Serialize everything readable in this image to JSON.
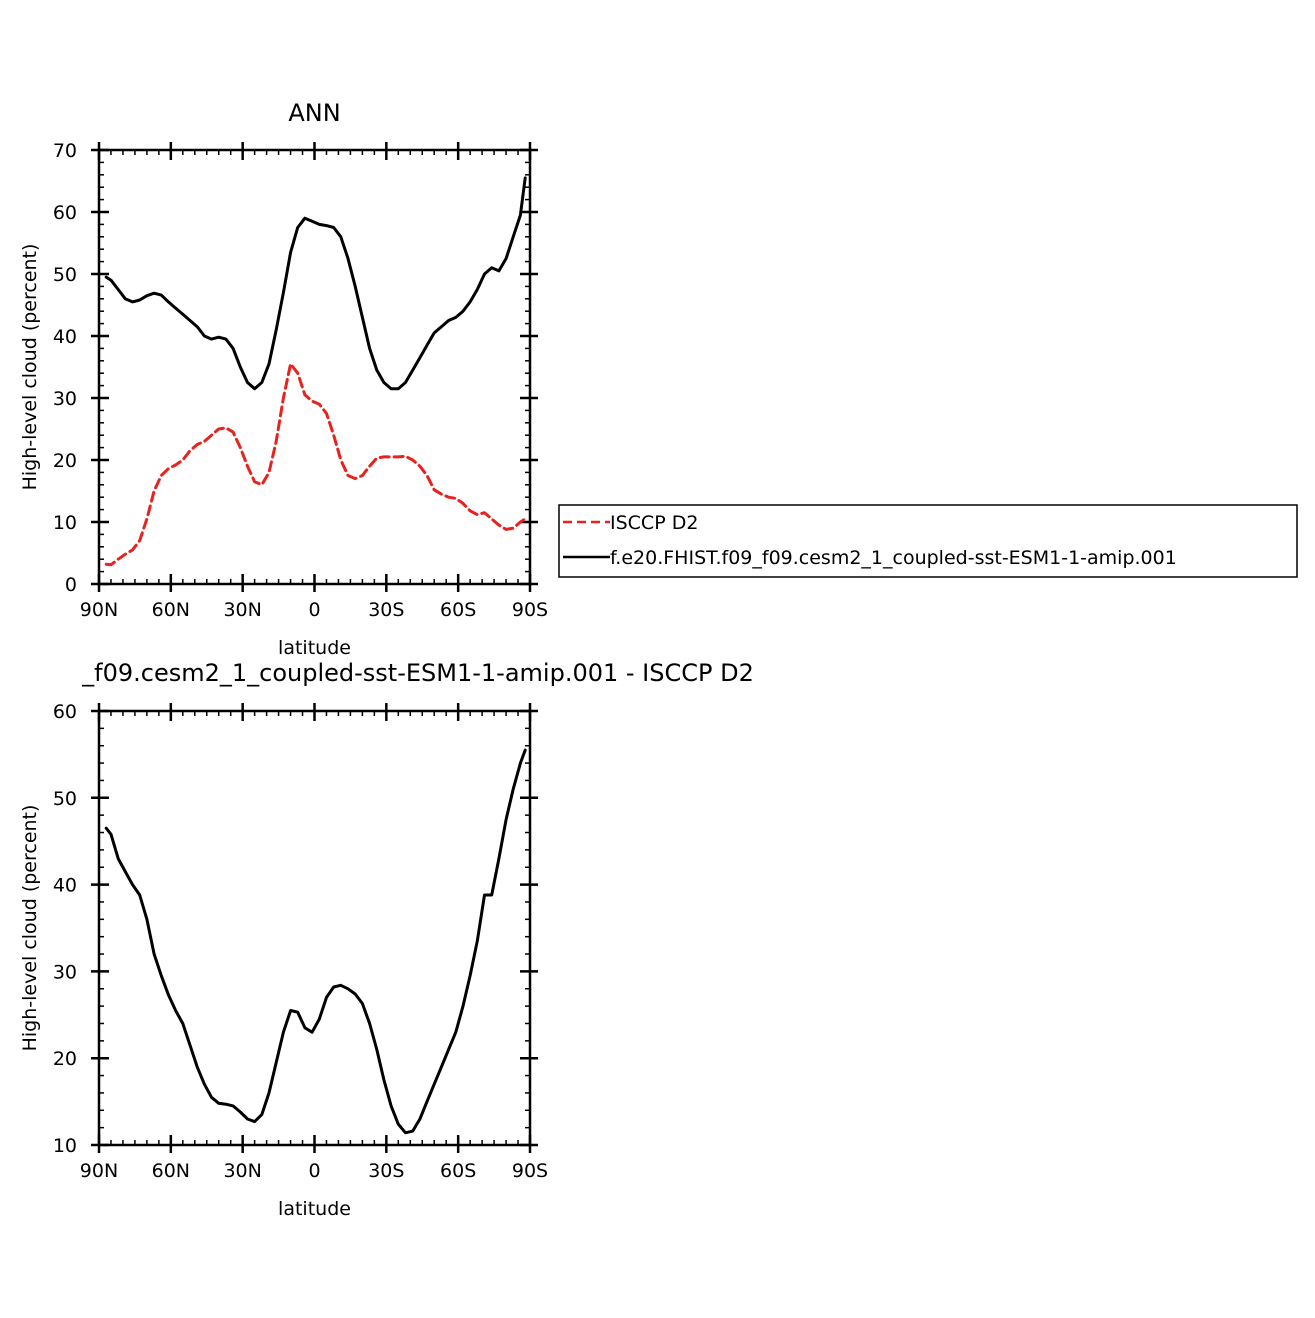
{
  "chart_data": [
    {
      "type": "line",
      "title": "ANN",
      "xlabel": "latitude",
      "ylabel": "High-level cloud (percent)",
      "xlim": [
        -90,
        90
      ],
      "ylim": [
        0,
        70
      ],
      "x_ticks": [
        -90,
        -60,
        -30,
        0,
        30,
        60,
        90
      ],
      "x_tick_labels": [
        "90N",
        "60N",
        "30N",
        "0",
        "30S",
        "60S",
        "90S"
      ],
      "y_ticks": [
        0,
        10,
        20,
        30,
        40,
        50,
        60,
        70
      ],
      "y_tick_labels": [
        "0",
        "10",
        "20",
        "30",
        "40",
        "50",
        "60",
        "70"
      ],
      "legend_position": "right",
      "x": [
        -87,
        -85,
        -82,
        -79,
        -76,
        -73,
        -70,
        -67,
        -64,
        -61,
        -58,
        -55,
        -52,
        -49,
        -46,
        -43,
        -40,
        -37,
        -34,
        -31,
        -28,
        -25,
        -22,
        -19,
        -16,
        -13,
        -10,
        -7,
        -4,
        -1,
        2,
        5,
        8,
        11,
        14,
        17,
        20,
        23,
        26,
        29,
        32,
        35,
        38,
        41,
        44,
        47,
        50,
        53,
        56,
        59,
        62,
        65,
        68,
        71,
        74,
        77,
        80,
        83,
        86,
        88
      ],
      "series": [
        {
          "name": "ISCCP D2",
          "color": "#e8221e",
          "dash": "dashed",
          "values": [
            3.2,
            3.1,
            4.0,
            4.8,
            5.5,
            7.0,
            10.5,
            15.0,
            17.5,
            18.6,
            19.2,
            20.0,
            21.5,
            22.5,
            23.0,
            24.0,
            25.0,
            25.2,
            24.5,
            22.0,
            19.0,
            16.5,
            16.0,
            18.0,
            23.0,
            30.0,
            35.5,
            34.0,
            30.5,
            29.5,
            29.0,
            27.5,
            24.0,
            20.0,
            17.5,
            17.0,
            17.5,
            19.0,
            20.3,
            20.5,
            20.5,
            20.5,
            20.6,
            20.0,
            19.0,
            17.5,
            15.2,
            14.5,
            14.0,
            13.8,
            13.0,
            11.8,
            11.2,
            11.5,
            10.5,
            9.5,
            8.8,
            9.0,
            10.0,
            10.5
          ],
          "label": "ISCCP D2"
        },
        {
          "name": "f.e20.FHIST.f09_f09.cesm2_1_coupled-sst-ESM1-1-amip.001",
          "color": "#000000",
          "dash": "solid",
          "values": [
            49.5,
            49.0,
            47.5,
            46.0,
            45.5,
            45.8,
            46.5,
            46.9,
            46.6,
            45.5,
            44.5,
            43.5,
            42.5,
            41.5,
            40.0,
            39.5,
            39.8,
            39.5,
            38.0,
            35.0,
            32.5,
            31.5,
            32.5,
            35.5,
            41.0,
            47.0,
            53.5,
            57.5,
            59.0,
            58.5,
            58.0,
            57.8,
            57.5,
            56.0,
            52.5,
            48.0,
            43.0,
            38.0,
            34.5,
            32.5,
            31.5,
            31.5,
            32.5,
            34.5,
            36.5,
            38.5,
            40.5,
            41.5,
            42.5,
            43.0,
            44.0,
            45.5,
            47.5,
            50.0,
            51.0,
            50.5,
            52.5,
            56.0,
            59.5,
            65.5
          ],
          "label": "f.e20.FHIST.f09_f09.cesm2_1_coupled-sst-ESM1-1-amip.001"
        }
      ]
    },
    {
      "type": "line",
      "title": "_f09.cesm2_1_coupled-sst-ESM1-1-amip.001 - ISCCP D2",
      "xlabel": "latitude",
      "ylabel": "High-level cloud (percent)",
      "xlim": [
        -90,
        90
      ],
      "ylim": [
        10,
        60
      ],
      "x_ticks": [
        -90,
        -60,
        -30,
        0,
        30,
        60,
        90
      ],
      "x_tick_labels": [
        "90N",
        "60N",
        "30N",
        "0",
        "30S",
        "60S",
        "90S"
      ],
      "y_ticks": [
        10,
        20,
        30,
        40,
        50,
        60
      ],
      "y_tick_labels": [
        "10",
        "20",
        "30",
        "40",
        "50",
        "60"
      ],
      "x": [
        -87,
        -85,
        -82,
        -79,
        -76,
        -73,
        -70,
        -67,
        -64,
        -61,
        -58,
        -55,
        -52,
        -49,
        -46,
        -43,
        -40,
        -37,
        -34,
        -31,
        -28,
        -25,
        -22,
        -19,
        -16,
        -13,
        -10,
        -7,
        -4,
        -1,
        2,
        5,
        8,
        11,
        14,
        17,
        20,
        23,
        26,
        29,
        32,
        35,
        38,
        41,
        44,
        47,
        50,
        53,
        56,
        59,
        62,
        65,
        68,
        71,
        74,
        77,
        80,
        83,
        86,
        88
      ],
      "series": [
        {
          "color": "#000000",
          "dash": "solid",
          "values": [
            46.5,
            45.8,
            43.0,
            41.5,
            40.0,
            38.8,
            36.0,
            32.0,
            29.5,
            27.3,
            25.5,
            24.0,
            21.5,
            19.0,
            17.0,
            15.5,
            14.8,
            14.7,
            14.5,
            13.8,
            13.0,
            12.7,
            13.5,
            16.0,
            19.5,
            23.0,
            25.5,
            25.3,
            23.5,
            23.0,
            24.5,
            27.0,
            28.2,
            28.4,
            28.0,
            27.4,
            26.3,
            24.0,
            21.0,
            17.5,
            14.5,
            12.4,
            11.4,
            11.6,
            13.0,
            15.0,
            17.0,
            19.0,
            21.0,
            23.0,
            26.0,
            29.5,
            33.5,
            38.8,
            38.8,
            43.0,
            47.5,
            51.0,
            54.0,
            55.5
          ]
        }
      ]
    }
  ]
}
